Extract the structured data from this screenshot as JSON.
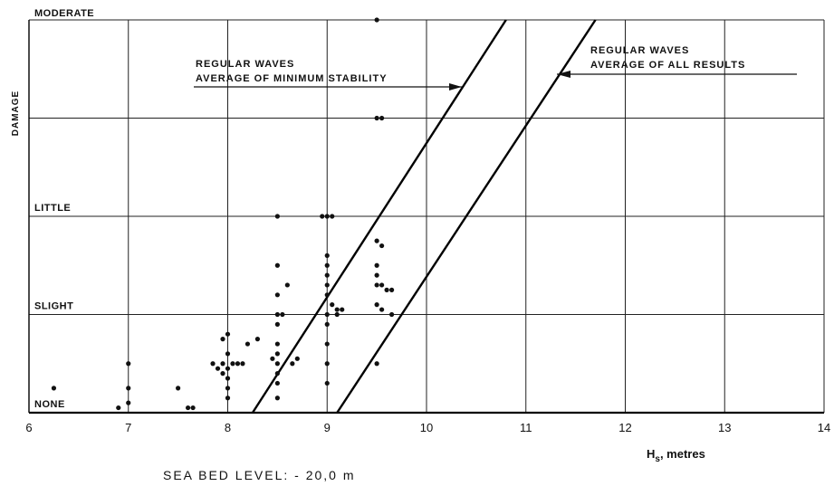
{
  "chart_data": {
    "type": "scatter",
    "xlabel_main": "H",
    "xlabel_sub": "s",
    "xlabel_rest": ", metres",
    "ylabel": "DAMAGE",
    "footnote": "SEA BED LEVEL: - 20,0 m",
    "xlim": [
      6,
      14
    ],
    "xticks": [
      "6",
      "7",
      "8",
      "9",
      "10",
      "11",
      "12",
      "13",
      "14"
    ],
    "ylim": [
      0,
      4
    ],
    "damage_levels": [
      {
        "label": "NONE",
        "value": 0
      },
      {
        "label": "SLIGHT",
        "value": 1
      },
      {
        "label": "LITTLE",
        "value": 2
      },
      {
        "label": "MODERATE",
        "value": 4
      }
    ],
    "points": [
      [
        6.25,
        0.25
      ],
      [
        6.9,
        0.05
      ],
      [
        7.0,
        0.1
      ],
      [
        7.0,
        0.25
      ],
      [
        7.0,
        0.5
      ],
      [
        7.5,
        0.25
      ],
      [
        7.6,
        0.05
      ],
      [
        7.65,
        0.05
      ],
      [
        7.85,
        0.5
      ],
      [
        7.9,
        0.45
      ],
      [
        7.95,
        0.75
      ],
      [
        7.95,
        0.4
      ],
      [
        7.95,
        0.5
      ],
      [
        8.0,
        0.8
      ],
      [
        8.0,
        0.6
      ],
      [
        8.0,
        0.45
      ],
      [
        8.0,
        0.35
      ],
      [
        8.0,
        0.25
      ],
      [
        8.0,
        0.15
      ],
      [
        8.05,
        0.5
      ],
      [
        8.1,
        0.5
      ],
      [
        8.15,
        0.5
      ],
      [
        8.2,
        0.7
      ],
      [
        8.3,
        0.75
      ],
      [
        8.45,
        0.55
      ],
      [
        8.5,
        2.0
      ],
      [
        8.5,
        1.5
      ],
      [
        8.5,
        1.2
      ],
      [
        8.5,
        1.0
      ],
      [
        8.5,
        0.9
      ],
      [
        8.5,
        0.7
      ],
      [
        8.5,
        0.6
      ],
      [
        8.5,
        0.5
      ],
      [
        8.5,
        0.4
      ],
      [
        8.5,
        0.3
      ],
      [
        8.5,
        0.15
      ],
      [
        8.55,
        1.0
      ],
      [
        8.6,
        1.3
      ],
      [
        8.65,
        0.5
      ],
      [
        8.7,
        0.55
      ],
      [
        8.95,
        2.0
      ],
      [
        9.0,
        2.0
      ],
      [
        9.05,
        2.0
      ],
      [
        9.0,
        1.6
      ],
      [
        9.0,
        1.5
      ],
      [
        9.0,
        1.4
      ],
      [
        9.0,
        1.3
      ],
      [
        9.0,
        1.2
      ],
      [
        9.0,
        1.0
      ],
      [
        9.0,
        0.9
      ],
      [
        9.0,
        0.7
      ],
      [
        9.0,
        0.5
      ],
      [
        9.0,
        0.3
      ],
      [
        9.05,
        1.1
      ],
      [
        9.1,
        1.05
      ],
      [
        9.1,
        1.0
      ],
      [
        9.15,
        1.05
      ],
      [
        9.5,
        4.0
      ],
      [
        9.5,
        3.0
      ],
      [
        9.55,
        3.0
      ],
      [
        9.5,
        1.75
      ],
      [
        9.55,
        1.7
      ],
      [
        9.5,
        1.5
      ],
      [
        9.5,
        1.4
      ],
      [
        9.5,
        1.3
      ],
      [
        9.55,
        1.3
      ],
      [
        9.6,
        1.25
      ],
      [
        9.5,
        1.1
      ],
      [
        9.55,
        1.05
      ],
      [
        9.65,
        1.0
      ],
      [
        9.65,
        1.25
      ],
      [
        9.5,
        0.5
      ]
    ],
    "series": [
      {
        "name": "REGULAR WAVES AVERAGE OF MINIMUM STABILITY",
        "line1": "REGULAR   WAVES",
        "line2": "AVERAGE  OF  MINIMUM   STABILITY",
        "x": [
          8.25,
          10.8
        ],
        "y": [
          0,
          4
        ]
      },
      {
        "name": "REGULAR WAVES AVERAGE OF ALL RESULTS",
        "line1": "REGULAR   WAVES",
        "line2": "AVERAGE  OF  ALL  RESULTS",
        "x": [
          9.1,
          11.7
        ],
        "y": [
          0,
          4
        ]
      }
    ],
    "grid": true
  },
  "colors": {
    "ink": "#111111",
    "grid": "#222222",
    "background": "#ffffff"
  }
}
